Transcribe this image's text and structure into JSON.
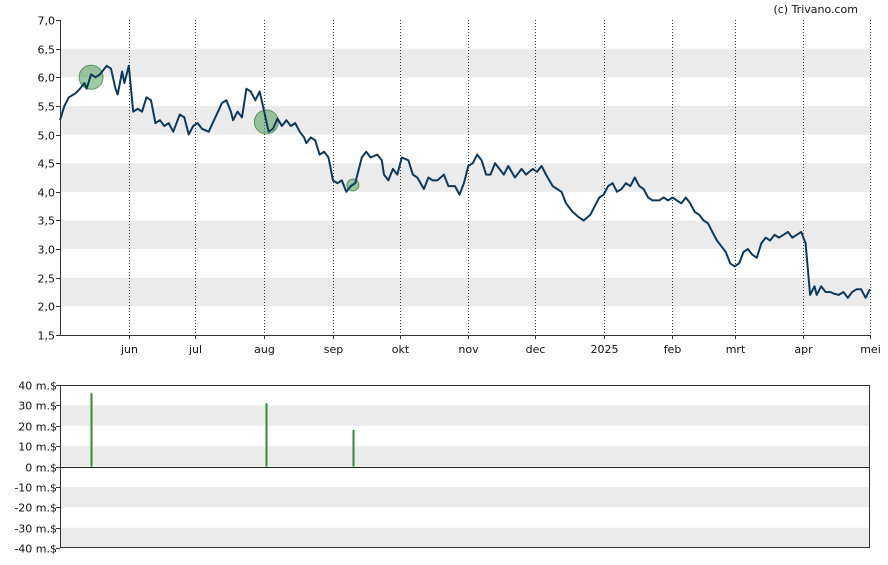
{
  "credit": "(c) Trivano.com",
  "chart_data": [
    {
      "type": "line",
      "ylim": [
        1.5,
        7.0
      ],
      "y_ticks": [
        "1,5",
        "2,0",
        "2,5",
        "3,0",
        "3,5",
        "4,0",
        "4,5",
        "5,0",
        "5,5",
        "6,0",
        "6,5",
        "7,0"
      ],
      "x_ticks": [
        "jun",
        "jul",
        "aug",
        "sep",
        "okt",
        "nov",
        "dec",
        "2025",
        "feb",
        "mrt",
        "apr",
        "mei"
      ],
      "x_range": [
        "2024-05-01",
        "2025-05-01"
      ],
      "x_tick_dates": [
        "2024-06-01",
        "2024-07-01",
        "2024-08-01",
        "2024-09-01",
        "2024-10-01",
        "2024-11-01",
        "2024-12-01",
        "2025-01-01",
        "2025-02-01",
        "2025-03-01",
        "2025-04-01",
        "2025-05-01"
      ],
      "grid": "alternating horizontal bands, dotted vertical lines",
      "line_color": "#0d3a5c",
      "series": [
        {
          "values": [
            [
              "2024-05-01",
              5.25
            ],
            [
              "2024-05-03",
              5.5
            ],
            [
              "2024-05-05",
              5.65
            ],
            [
              "2024-05-08",
              5.72
            ],
            [
              "2024-05-10",
              5.8
            ],
            [
              "2024-05-12",
              5.9
            ],
            [
              "2024-05-13",
              5.8
            ],
            [
              "2024-05-15",
              6.05
            ],
            [
              "2024-05-17",
              6.0
            ],
            [
              "2024-05-19",
              6.05
            ],
            [
              "2024-05-20",
              6.1
            ],
            [
              "2024-05-22",
              6.2
            ],
            [
              "2024-05-24",
              6.15
            ],
            [
              "2024-05-26",
              5.8
            ],
            [
              "2024-05-27",
              5.7
            ],
            [
              "2024-05-29",
              6.1
            ],
            [
              "2024-05-30",
              5.9
            ],
            [
              "2024-06-01",
              6.2
            ],
            [
              "2024-06-03",
              5.4
            ],
            [
              "2024-06-05",
              5.45
            ],
            [
              "2024-06-07",
              5.4
            ],
            [
              "2024-06-09",
              5.65
            ],
            [
              "2024-06-11",
              5.6
            ],
            [
              "2024-06-13",
              5.2
            ],
            [
              "2024-06-15",
              5.25
            ],
            [
              "2024-06-17",
              5.15
            ],
            [
              "2024-06-19",
              5.2
            ],
            [
              "2024-06-21",
              5.05
            ],
            [
              "2024-06-22",
              5.15
            ],
            [
              "2024-06-24",
              5.35
            ],
            [
              "2024-06-26",
              5.3
            ],
            [
              "2024-06-28",
              5.0
            ],
            [
              "2024-06-30",
              5.15
            ],
            [
              "2024-07-02",
              5.2
            ],
            [
              "2024-07-04",
              5.1
            ],
            [
              "2024-07-07",
              5.05
            ],
            [
              "2024-07-10",
              5.3
            ],
            [
              "2024-07-13",
              5.55
            ],
            [
              "2024-07-15",
              5.6
            ],
            [
              "2024-07-17",
              5.4
            ],
            [
              "2024-07-18",
              5.25
            ],
            [
              "2024-07-20",
              5.4
            ],
            [
              "2024-07-22",
              5.3
            ],
            [
              "2024-07-24",
              5.8
            ],
            [
              "2024-07-26",
              5.75
            ],
            [
              "2024-07-28",
              5.6
            ],
            [
              "2024-07-30",
              5.75
            ],
            [
              "2024-08-01",
              5.4
            ],
            [
              "2024-08-03",
              5.05
            ],
            [
              "2024-08-05",
              5.1
            ],
            [
              "2024-08-07",
              5.28
            ],
            [
              "2024-08-09",
              5.15
            ],
            [
              "2024-08-11",
              5.25
            ],
            [
              "2024-08-13",
              5.15
            ],
            [
              "2024-08-15",
              5.2
            ],
            [
              "2024-08-17",
              5.05
            ],
            [
              "2024-08-19",
              4.95
            ],
            [
              "2024-08-20",
              4.85
            ],
            [
              "2024-08-22",
              4.95
            ],
            [
              "2024-08-24",
              4.9
            ],
            [
              "2024-08-26",
              4.65
            ],
            [
              "2024-08-28",
              4.7
            ],
            [
              "2024-08-30",
              4.6
            ],
            [
              "2024-09-01",
              4.2
            ],
            [
              "2024-09-03",
              4.15
            ],
            [
              "2024-09-05",
              4.2
            ],
            [
              "2024-09-07",
              4.0
            ],
            [
              "2024-09-09",
              4.1
            ],
            [
              "2024-09-11",
              4.15
            ],
            [
              "2024-09-14",
              4.6
            ],
            [
              "2024-09-16",
              4.7
            ],
            [
              "2024-09-18",
              4.6
            ],
            [
              "2024-09-21",
              4.65
            ],
            [
              "2024-09-23",
              4.55
            ],
            [
              "2024-09-24",
              4.3
            ],
            [
              "2024-09-26",
              4.2
            ],
            [
              "2024-09-28",
              4.4
            ],
            [
              "2024-09-30",
              4.3
            ],
            [
              "2024-10-02",
              4.6
            ],
            [
              "2024-10-05",
              4.55
            ],
            [
              "2024-10-07",
              4.3
            ],
            [
              "2024-10-09",
              4.25
            ],
            [
              "2024-10-12",
              4.05
            ],
            [
              "2024-10-14",
              4.25
            ],
            [
              "2024-10-16",
              4.2
            ],
            [
              "2024-10-18",
              4.2
            ],
            [
              "2024-10-21",
              4.3
            ],
            [
              "2024-10-23",
              4.1
            ],
            [
              "2024-10-26",
              4.1
            ],
            [
              "2024-10-28",
              3.95
            ],
            [
              "2024-10-30",
              4.15
            ],
            [
              "2024-11-01",
              4.45
            ],
            [
              "2024-11-03",
              4.5
            ],
            [
              "2024-11-05",
              4.65
            ],
            [
              "2024-11-07",
              4.55
            ],
            [
              "2024-11-09",
              4.3
            ],
            [
              "2024-11-11",
              4.3
            ],
            [
              "2024-11-13",
              4.5
            ],
            [
              "2024-11-15",
              4.4
            ],
            [
              "2024-11-17",
              4.3
            ],
            [
              "2024-11-19",
              4.45
            ],
            [
              "2024-11-22",
              4.25
            ],
            [
              "2024-11-25",
              4.4
            ],
            [
              "2024-11-27",
              4.3
            ],
            [
              "2024-11-30",
              4.4
            ],
            [
              "2024-12-02",
              4.35
            ],
            [
              "2024-12-04",
              4.45
            ],
            [
              "2024-12-06",
              4.3
            ],
            [
              "2024-12-09",
              4.1
            ],
            [
              "2024-12-11",
              4.05
            ],
            [
              "2024-12-13",
              4.0
            ],
            [
              "2024-12-15",
              3.8
            ],
            [
              "2024-12-18",
              3.65
            ],
            [
              "2024-12-21",
              3.55
            ],
            [
              "2024-12-23",
              3.5
            ],
            [
              "2024-12-26",
              3.6
            ],
            [
              "2024-12-28",
              3.75
            ],
            [
              "2024-12-30",
              3.9
            ],
            [
              "2025-01-01",
              3.95
            ],
            [
              "2025-01-03",
              4.1
            ],
            [
              "2025-01-05",
              4.15
            ],
            [
              "2025-01-07",
              4.0
            ],
            [
              "2025-01-09",
              4.05
            ],
            [
              "2025-01-11",
              4.15
            ],
            [
              "2025-01-13",
              4.1
            ],
            [
              "2025-01-15",
              4.25
            ],
            [
              "2025-01-17",
              4.1
            ],
            [
              "2025-01-19",
              4.05
            ],
            [
              "2025-01-21",
              3.9
            ],
            [
              "2025-01-23",
              3.85
            ],
            [
              "2025-01-26",
              3.85
            ],
            [
              "2025-01-28",
              3.9
            ],
            [
              "2025-01-30",
              3.85
            ],
            [
              "2025-02-01",
              3.9
            ],
            [
              "2025-02-03",
              3.85
            ],
            [
              "2025-02-05",
              3.8
            ],
            [
              "2025-02-07",
              3.9
            ],
            [
              "2025-02-09",
              3.8
            ],
            [
              "2025-02-11",
              3.65
            ],
            [
              "2025-02-13",
              3.6
            ],
            [
              "2025-02-15",
              3.5
            ],
            [
              "2025-02-17",
              3.45
            ],
            [
              "2025-02-19",
              3.3
            ],
            [
              "2025-02-21",
              3.15
            ],
            [
              "2025-02-23",
              3.05
            ],
            [
              "2025-02-25",
              2.95
            ],
            [
              "2025-02-27",
              2.75
            ],
            [
              "2025-03-01",
              2.7
            ],
            [
              "2025-03-03",
              2.75
            ],
            [
              "2025-03-05",
              2.95
            ],
            [
              "2025-03-07",
              3.0
            ],
            [
              "2025-03-09",
              2.9
            ],
            [
              "2025-03-11",
              2.85
            ],
            [
              "2025-03-13",
              3.1
            ],
            [
              "2025-03-15",
              3.2
            ],
            [
              "2025-03-17",
              3.15
            ],
            [
              "2025-03-19",
              3.25
            ],
            [
              "2025-03-21",
              3.2
            ],
            [
              "2025-03-23",
              3.25
            ],
            [
              "2025-03-25",
              3.3
            ],
            [
              "2025-03-27",
              3.2
            ],
            [
              "2025-03-29",
              3.25
            ],
            [
              "2025-03-31",
              3.3
            ],
            [
              "2025-04-02",
              3.1
            ],
            [
              "2025-04-04",
              2.2
            ],
            [
              "2025-04-06",
              2.35
            ],
            [
              "2025-04-07",
              2.2
            ],
            [
              "2025-04-09",
              2.35
            ],
            [
              "2025-04-11",
              2.25
            ],
            [
              "2025-04-13",
              2.25
            ],
            [
              "2025-04-15",
              2.22
            ],
            [
              "2025-04-17",
              2.2
            ],
            [
              "2025-04-19",
              2.25
            ],
            [
              "2025-04-21",
              2.15
            ],
            [
              "2025-04-23",
              2.25
            ],
            [
              "2025-04-25",
              2.3
            ],
            [
              "2025-04-27",
              2.3
            ],
            [
              "2025-04-29",
              2.15
            ],
            [
              "2025-05-01",
              2.3
            ]
          ]
        }
      ],
      "markers": [
        {
          "date": "2024-05-15",
          "value": 6.0,
          "size": "large"
        },
        {
          "date": "2024-08-02",
          "value": 5.22,
          "size": "large"
        },
        {
          "date": "2024-09-10",
          "value": 4.12,
          "size": "small"
        }
      ]
    },
    {
      "type": "bar",
      "ylim": [
        -40,
        40
      ],
      "y_ticks": [
        "-40 m.$",
        "-30 m.$",
        "-20 m.$",
        "-10 m.$",
        "0 m.$",
        "10 m.$",
        "20 m.$",
        "30 m.$",
        "40 m.$"
      ],
      "x_range": [
        "2024-05-01",
        "2025-05-01"
      ],
      "bar_color": "#2e8b3a",
      "bars": [
        {
          "date": "2024-05-15",
          "value": 36
        },
        {
          "date": "2024-08-02",
          "value": 31
        },
        {
          "date": "2024-09-10",
          "value": 18
        }
      ]
    }
  ]
}
